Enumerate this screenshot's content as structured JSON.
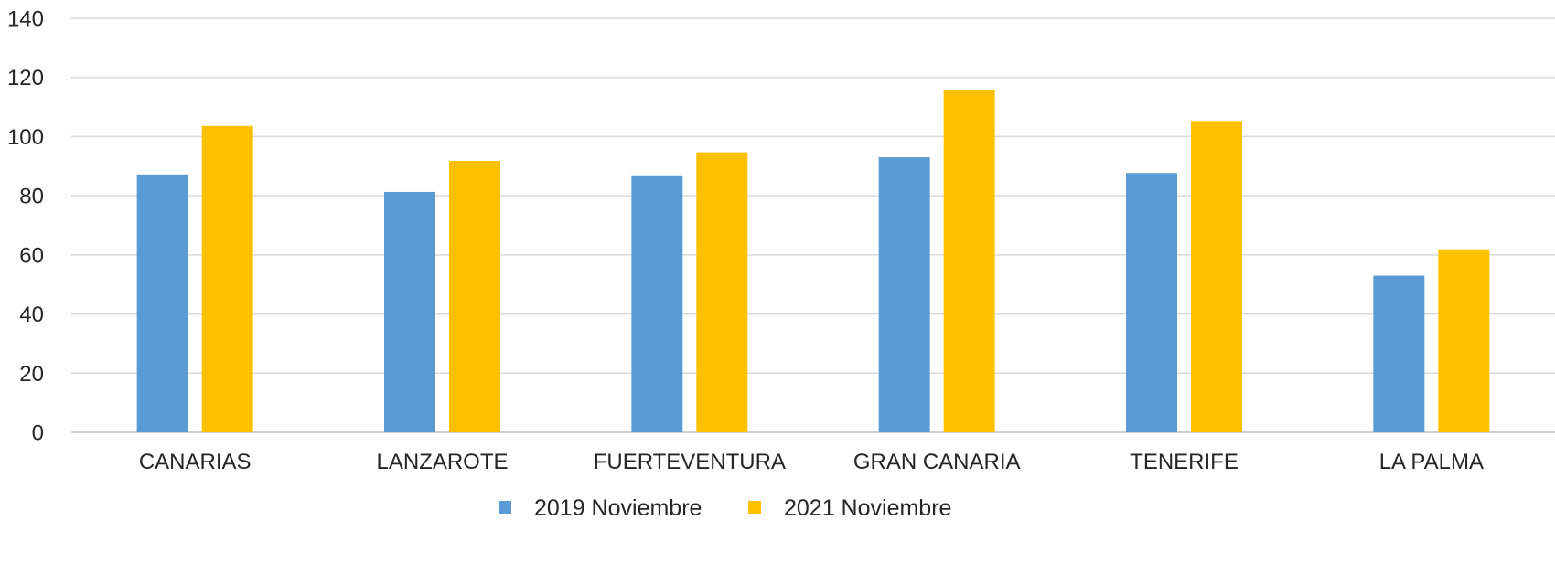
{
  "chart_data": {
    "type": "bar",
    "title": "",
    "xlabel": "",
    "ylabel": "",
    "ylim": [
      0,
      140
    ],
    "y_ticks": [
      0,
      20,
      40,
      60,
      80,
      100,
      120,
      140
    ],
    "grid": true,
    "legend_position": "bottom",
    "categories": [
      "CANARIAS",
      "LANZAROTE",
      "FUERTEVENTURA",
      "GRAN CANARIA",
      "TENERIFE",
      "LA PALMA"
    ],
    "series": [
      {
        "name": "2019 Noviembre",
        "color": "#5b9bd5",
        "values": [
          87.2,
          81.3,
          86.6,
          93.0,
          87.7,
          53.0
        ]
      },
      {
        "name": "2021 Noviembre",
        "color": "#ffc000",
        "values": [
          103.6,
          91.8,
          94.7,
          115.8,
          105.3,
          61.9
        ]
      }
    ]
  }
}
